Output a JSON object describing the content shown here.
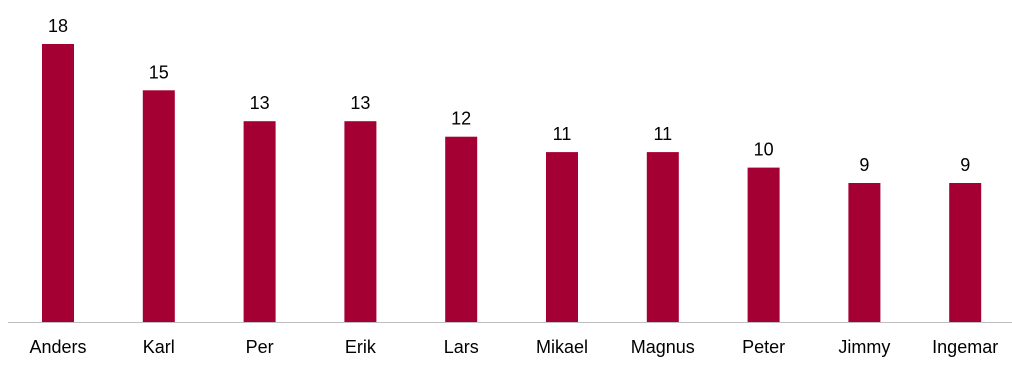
{
  "chart_data": {
    "type": "bar",
    "categories": [
      "Anders",
      "Karl",
      "Per",
      "Erik",
      "Lars",
      "Mikael",
      "Magnus",
      "Peter",
      "Jimmy",
      "Ingemar"
    ],
    "values": [
      18,
      15,
      13,
      13,
      12,
      11,
      11,
      10,
      9,
      9
    ],
    "title": "",
    "xlabel": "",
    "ylabel": "",
    "ylim": [
      0,
      18
    ],
    "grid": false,
    "legend": "none",
    "bar_color": "#A50034",
    "axis_color": "#BFBFBF"
  }
}
